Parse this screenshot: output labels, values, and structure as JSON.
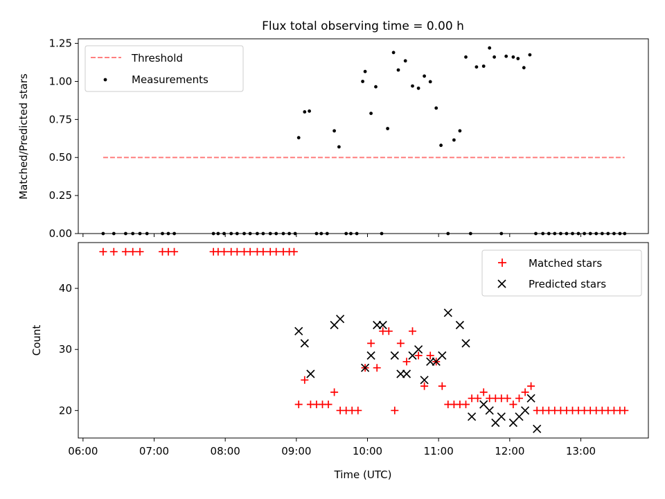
{
  "title": "Flux total observing time = 0.00 h",
  "chart_data": [
    {
      "type": "scatter",
      "panel": "top",
      "ylabel": "Matched/Predicted stars",
      "ylim": [
        0,
        1.28
      ],
      "yticks": [
        0.0,
        0.25,
        0.5,
        0.75,
        1.0,
        1.25
      ],
      "ytick_labels": [
        "0.00",
        "0.25",
        "0.50",
        "0.75",
        "1.00",
        "1.25"
      ],
      "legend_position": "top-left",
      "grid": false,
      "threshold": {
        "name": "Threshold",
        "value": 0.5,
        "color": "#ff7f7f",
        "style": "dashed",
        "x_range": [
          "06:17",
          "13:37"
        ]
      },
      "series": [
        {
          "name": "Measurements",
          "color": "#000000",
          "marker": "dot",
          "x": [
            "06:17",
            "06:26",
            "06:36",
            "06:42",
            "06:48",
            "06:54",
            "07:07",
            "07:12",
            "07:17",
            "07:50",
            "07:54",
            "07:59",
            "08:05",
            "08:10",
            "08:16",
            "08:21",
            "08:27",
            "08:32",
            "08:38",
            "08:43",
            "08:49",
            "08:54",
            "08:59",
            "09:02",
            "09:07",
            "09:11",
            "09:17",
            "09:21",
            "09:26",
            "09:32",
            "09:36",
            "09:42",
            "09:46",
            "09:51",
            "09:56",
            "09:58",
            "10:03",
            "10:07",
            "10:12",
            "10:17",
            "10:22",
            "10:26",
            "10:32",
            "10:38",
            "10:43",
            "10:48",
            "10:53",
            "10:58",
            "11:02",
            "11:08",
            "11:13",
            "11:18",
            "11:23",
            "11:27",
            "11:32",
            "11:38",
            "11:43",
            "11:47",
            "11:53",
            "11:57",
            "12:03",
            "12:07",
            "12:12",
            "12:17",
            "12:22",
            "12:28",
            "12:33",
            "12:38",
            "12:43",
            "12:48",
            "12:53",
            "12:58",
            "13:03",
            "13:08",
            "13:13",
            "13:18",
            "13:23",
            "13:28",
            "13:33",
            "13:37"
          ],
          "y": [
            0,
            0,
            0,
            0,
            0,
            0,
            0,
            0,
            0,
            0,
            0,
            0,
            0,
            0,
            0,
            0,
            0,
            0,
            0,
            0,
            0,
            0,
            0,
            0.63,
            0.8,
            0.805,
            0,
            0,
            0,
            0.675,
            0.57,
            0,
            0,
            0,
            1.0,
            1.065,
            0.79,
            0.965,
            0,
            0.69,
            1.19,
            1.075,
            1.135,
            0.97,
            0.955,
            1.035,
            0.998,
            0.825,
            0.58,
            0,
            0.615,
            0.675,
            1.16,
            0,
            1.095,
            1.1,
            1.22,
            1.16,
            0,
            1.165,
            1.16,
            1.15,
            1.09,
            1.175,
            0,
            0,
            0,
            0,
            0,
            0,
            0,
            0,
            0,
            0,
            0,
            0,
            0,
            0,
            0,
            0
          ]
        }
      ]
    },
    {
      "type": "scatter",
      "panel": "bottom",
      "xlabel": "Time (UTC)",
      "ylabel": "Count",
      "ylim": [
        15.5,
        47.5
      ],
      "yticks": [
        20,
        30,
        40
      ],
      "xlim": [
        "05:56",
        "13:57"
      ],
      "xticks": [
        "06:00",
        "07:00",
        "08:00",
        "09:00",
        "10:00",
        "11:00",
        "12:00",
        "13:00"
      ],
      "legend_position": "top-right",
      "grid": false,
      "series": [
        {
          "name": "Matched stars",
          "color": "#ff0000",
          "marker": "plus",
          "points": [
            [
              "06:17",
              46
            ],
            [
              "06:26",
              46
            ],
            [
              "06:36",
              46
            ],
            [
              "06:42",
              46
            ],
            [
              "06:48",
              46
            ],
            [
              "07:07",
              46
            ],
            [
              "07:12",
              46
            ],
            [
              "07:17",
              46
            ],
            [
              "07:50",
              46
            ],
            [
              "07:54",
              46
            ],
            [
              "07:59",
              46
            ],
            [
              "08:05",
              46
            ],
            [
              "08:10",
              46
            ],
            [
              "08:16",
              46
            ],
            [
              "08:21",
              46
            ],
            [
              "08:27",
              46
            ],
            [
              "08:32",
              46
            ],
            [
              "08:38",
              46
            ],
            [
              "08:43",
              46
            ],
            [
              "08:49",
              46
            ],
            [
              "08:54",
              46
            ],
            [
              "08:58",
              46
            ],
            [
              "09:02",
              21
            ],
            [
              "09:07",
              25
            ],
            [
              "09:12",
              21
            ],
            [
              "09:17",
              21
            ],
            [
              "09:22",
              21
            ],
            [
              "09:27",
              21
            ],
            [
              "09:32",
              23
            ],
            [
              "09:37",
              20
            ],
            [
              "09:42",
              20
            ],
            [
              "09:47",
              20
            ],
            [
              "09:52",
              20
            ],
            [
              "09:58",
              27
            ],
            [
              "10:03",
              31
            ],
            [
              "10:08",
              27
            ],
            [
              "10:13",
              33
            ],
            [
              "10:18",
              33
            ],
            [
              "10:23",
              20
            ],
            [
              "10:28",
              31
            ],
            [
              "10:33",
              28
            ],
            [
              "10:38",
              33
            ],
            [
              "10:43",
              29
            ],
            [
              "10:48",
              24
            ],
            [
              "10:53",
              29
            ],
            [
              "10:58",
              28
            ],
            [
              "11:03",
              24
            ],
            [
              "11:08",
              21
            ],
            [
              "11:13",
              21
            ],
            [
              "11:18",
              21
            ],
            [
              "11:23",
              21
            ],
            [
              "11:28",
              22
            ],
            [
              "11:33",
              22
            ],
            [
              "11:38",
              23
            ],
            [
              "11:43",
              22
            ],
            [
              "11:48",
              22
            ],
            [
              "11:53",
              22
            ],
            [
              "11:58",
              22
            ],
            [
              "12:03",
              21
            ],
            [
              "12:08",
              22
            ],
            [
              "12:13",
              23
            ],
            [
              "12:18",
              24
            ],
            [
              "12:23",
              20
            ],
            [
              "12:28",
              20
            ],
            [
              "12:33",
              20
            ],
            [
              "12:38",
              20
            ],
            [
              "12:43",
              20
            ],
            [
              "12:48",
              20
            ],
            [
              "12:53",
              20
            ],
            [
              "12:58",
              20
            ],
            [
              "13:03",
              20
            ],
            [
              "13:08",
              20
            ],
            [
              "13:13",
              20
            ],
            [
              "13:18",
              20
            ],
            [
              "13:23",
              20
            ],
            [
              "13:28",
              20
            ],
            [
              "13:33",
              20
            ],
            [
              "13:37",
              20
            ]
          ]
        },
        {
          "name": "Predicted stars",
          "color": "#000000",
          "marker": "x",
          "points": [
            [
              "09:02",
              33
            ],
            [
              "09:07",
              31
            ],
            [
              "09:12",
              26
            ],
            [
              "09:32",
              34
            ],
            [
              "09:37",
              35
            ],
            [
              "09:58",
              27
            ],
            [
              "10:03",
              29
            ],
            [
              "10:08",
              34
            ],
            [
              "10:13",
              34
            ],
            [
              "10:23",
              29
            ],
            [
              "10:28",
              26
            ],
            [
              "10:33",
              26
            ],
            [
              "10:38",
              29
            ],
            [
              "10:43",
              30
            ],
            [
              "10:48",
              25
            ],
            [
              "10:53",
              28
            ],
            [
              "10:58",
              28
            ],
            [
              "11:03",
              29
            ],
            [
              "11:08",
              36
            ],
            [
              "11:18",
              34
            ],
            [
              "11:23",
              31
            ],
            [
              "11:28",
              19
            ],
            [
              "11:38",
              21
            ],
            [
              "11:43",
              20
            ],
            [
              "11:48",
              18
            ],
            [
              "11:53",
              19
            ],
            [
              "12:03",
              18
            ],
            [
              "12:08",
              19
            ],
            [
              "12:13",
              20
            ],
            [
              "12:18",
              22
            ],
            [
              "12:23",
              17
            ]
          ]
        }
      ]
    }
  ]
}
